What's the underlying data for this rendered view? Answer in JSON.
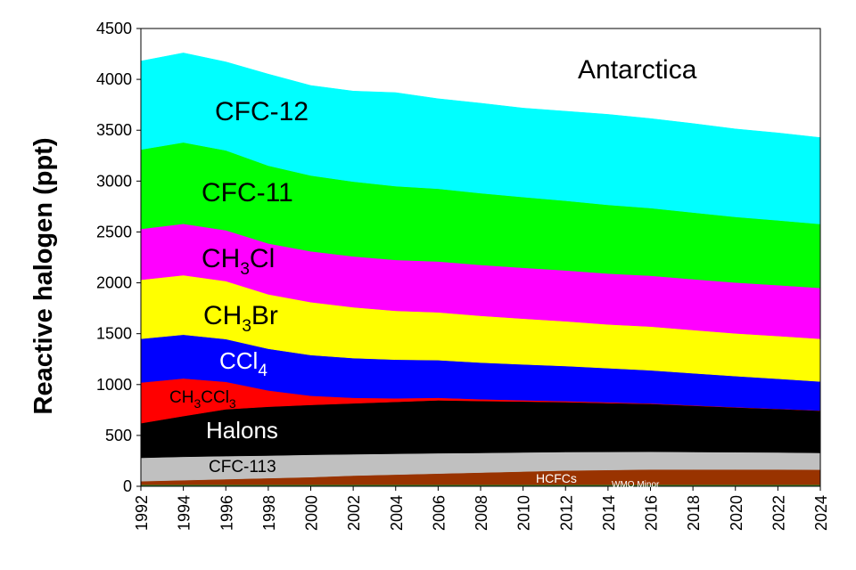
{
  "chart_data": {
    "type": "area",
    "stacked": true,
    "title": "Antarctica",
    "ylabel": "Reactive halogen (ppt)",
    "xlabel": "",
    "ylim": [
      0,
      4500
    ],
    "xlim": [
      1992,
      2024
    ],
    "yticks": [
      "0",
      "500",
      "1000",
      "1500",
      "2000",
      "2500",
      "3000",
      "3500",
      "4000",
      "4500"
    ],
    "xticks": [
      "1992",
      "1994",
      "1996",
      "1998",
      "2000",
      "2002",
      "2004",
      "2006",
      "2008",
      "2010",
      "2012",
      "2014",
      "2016",
      "2018",
      "2020",
      "2022",
      "2024"
    ],
    "grid": false,
    "x": [
      1992,
      1994,
      1996,
      1998,
      2000,
      2002,
      2004,
      2006,
      2008,
      2010,
      2012,
      2014,
      2016,
      2018,
      2020,
      2022,
      2024
    ],
    "series": [
      {
        "name": "WMO Minor",
        "color": "#2e8b2e",
        "values": [
          15,
          15,
          15,
          15,
          15,
          15,
          15,
          15,
          15,
          15,
          15,
          15,
          15,
          15,
          15,
          15,
          15
        ]
      },
      {
        "name": "HCFCs",
        "color": "#993300",
        "values": [
          35,
          45,
          55,
          65,
          75,
          90,
          100,
          110,
          120,
          130,
          140,
          145,
          150,
          150,
          150,
          150,
          148
        ]
      },
      {
        "name": "CFC-113",
        "color": "#c0c0c0",
        "values": [
          230,
          230,
          227,
          222,
          220,
          210,
          205,
          200,
          193,
          188,
          182,
          178,
          175,
          172,
          170,
          168,
          165
        ]
      },
      {
        "name": "Halons",
        "color": "#000000",
        "values": [
          340,
          400,
          460,
          480,
          490,
          500,
          510,
          520,
          510,
          500,
          490,
          480,
          470,
          455,
          440,
          427,
          415
        ]
      },
      {
        "name": "CH3CCl3",
        "color": "#ff0000",
        "values": [
          400,
          370,
          270,
          160,
          90,
          55,
          35,
          25,
          18,
          13,
          10,
          8,
          5,
          4,
          3,
          2,
          2
        ]
      },
      {
        "name": "CCl4",
        "color": "#0000ff",
        "values": [
          430,
          430,
          420,
          410,
          400,
          390,
          380,
          370,
          360,
          352,
          345,
          335,
          325,
          315,
          305,
          295,
          285
        ]
      },
      {
        "name": "CH3Br",
        "color": "#ffff00",
        "values": [
          580,
          585,
          570,
          535,
          520,
          500,
          480,
          470,
          460,
          450,
          440,
          430,
          430,
          425,
          420,
          420,
          420
        ]
      },
      {
        "name": "CH3Cl",
        "color": "#ff00ff",
        "values": [
          500,
          505,
          500,
          500,
          500,
          500,
          500,
          500,
          500,
          500,
          500,
          500,
          500,
          500,
          500,
          500,
          500
        ]
      },
      {
        "name": "CFC-11",
        "color": "#00ff00",
        "values": [
          780,
          800,
          785,
          765,
          745,
          735,
          725,
          715,
          705,
          695,
          685,
          675,
          665,
          655,
          645,
          637,
          628
        ]
      },
      {
        "name": "CFC-12",
        "color": "#00ffff",
        "values": [
          870,
          880,
          870,
          900,
          885,
          890,
          920,
          885,
          885,
          875,
          880,
          890,
          880,
          875,
          865,
          860,
          850
        ]
      }
    ]
  },
  "labels": {
    "region": "Antarctica",
    "cfc12": "CFC-12",
    "cfc11": "CFC-11",
    "ch3cl_a": "CH",
    "ch3cl_sub": "3",
    "ch3cl_b": "Cl",
    "ch3br_a": "CH",
    "ch3br_sub": "3",
    "ch3br_b": "Br",
    "ccl4_a": "CCl",
    "ccl4_sub": "4",
    "ch3ccl3_a": "CH",
    "ch3ccl3_sub1": "3",
    "ch3ccl3_b": "CCl",
    "ch3ccl3_sub2": "3",
    "halons": "Halons",
    "cfc113": "CFC-113",
    "hcfcs": "HCFCs",
    "wmo_minor": "WMO Minor"
  }
}
